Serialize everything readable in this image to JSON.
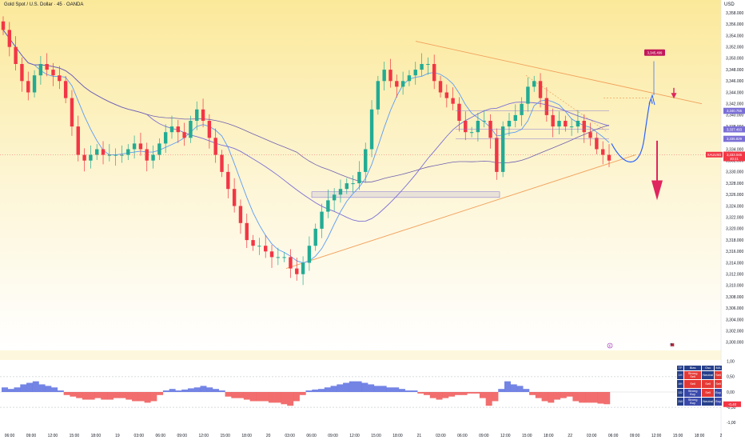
{
  "header": {
    "symbol_title": "Gold Spot / U.S. Dollar · 45 · OANDA",
    "currency": "USD"
  },
  "colors": {
    "up": "#22ab94",
    "down": "#f23645",
    "ma_fast": "#5b9cf6",
    "ma_slow": "#7b6fd6",
    "ma_mid": "#6f5fb0",
    "trend": "#f2a15c",
    "projection": "#2962ff",
    "target_label": "#c2185b",
    "price_label": "#f23645",
    "osc_pos": "#5b6ee1",
    "osc_neg": "#f05555",
    "bg_top": "#fbe99a",
    "bg_bottom": "#ffffff"
  },
  "chart_data": [
    {
      "type": "candlestick",
      "title": "Gold Spot / U.S. Dollar · 45 · OANDA",
      "y_axis": {
        "range": [
          3299,
          3359
        ],
        "ticks": [
          "3,358.000",
          "3,356.000",
          "3,354.000",
          "3,352.000",
          "3,350.000",
          "3,348.000",
          "3,346.000",
          "3,344.000",
          "3,342.000",
          "3,340.000",
          "3,338.000",
          "3,336.000",
          "3,334.000",
          "3,332.000",
          "3,330.000",
          "3,328.000",
          "3,326.000",
          "3,324.000",
          "3,322.000",
          "3,320.000",
          "3,318.000",
          "3,316.000",
          "3,314.000",
          "3,312.000",
          "3,310.000",
          "3,308.000",
          "3,306.000",
          "3,304.000",
          "3,302.000",
          "3,300.000"
        ]
      },
      "x_axis": {
        "labels": [
          "06:00",
          "09:00",
          "12:00",
          "15:00",
          "18:00",
          "19",
          "03:00",
          "06:00",
          "09:00",
          "12:00",
          "15:00",
          "18:00",
          "20",
          "03:00",
          "06:00",
          "09:00",
          "12:00",
          "15:00",
          "18:00",
          "21",
          "03:00",
          "06:00",
          "09:00",
          "12:00",
          "15:00",
          "18:00",
          "22",
          "03:00",
          "06:00",
          "09:00",
          "12:00",
          "15:00",
          "18:00",
          "2"
        ]
      },
      "path_close": [
        3355,
        3352,
        3349,
        3346,
        3344,
        3347,
        3349,
        3348,
        3347,
        3346,
        3343,
        3338,
        3333,
        3332,
        3333,
        3334,
        3333,
        3333,
        3333,
        3333,
        3334,
        3335,
        3334,
        3332,
        3333,
        3335,
        3337,
        3338,
        3337,
        3336,
        3339,
        3341,
        3339,
        3336,
        3333,
        3330,
        3327,
        3324,
        3321,
        3318,
        3317,
        3317,
        3316,
        3315,
        3315,
        3315,
        3313,
        3312,
        3314,
        3317,
        3320,
        3323,
        3325,
        3326,
        3327,
        3328,
        3328,
        3330,
        3334,
        3341,
        3346,
        3348,
        3346,
        3345,
        3346,
        3347,
        3348,
        3349,
        3349,
        3346,
        3344,
        3343,
        3342,
        3339,
        3337,
        3337,
        3339,
        3339,
        3336,
        3330,
        3338,
        3339,
        3340,
        3342,
        3345,
        3346,
        3343,
        3340,
        3338,
        3339,
        3338,
        3338,
        3339,
        3337,
        3336,
        3334,
        3333,
        3332
      ],
      "hlines": [
        {
          "value": 3340.755,
          "label": "3,340.755"
        },
        {
          "value": 3337.493,
          "label": "3,337.493"
        },
        {
          "value": 3335.829,
          "label": "3,335.829"
        }
      ],
      "last_price": {
        "symbol": "XAUUSD",
        "value": 3333.045,
        "label": "3,333.045",
        "countdown": "40:41"
      },
      "target": {
        "value": 3345.499,
        "label": "3,345.499"
      },
      "trendlines": {
        "upper": {
          "from": {
            "date": "21 02:00",
            "y": 3353
          },
          "to": {
            "date": "22 23:00",
            "y": 3342
          }
        },
        "lower": {
          "from": {
            "date": "20 00:00",
            "y": 3313
          },
          "to": {
            "date": "22 05:00",
            "y": 3333
          }
        }
      },
      "support_zone": [
        3325.5,
        3326.5
      ]
    },
    {
      "type": "bar",
      "subtitle": "oscillator",
      "y_axis": {
        "range": [
          -1.1,
          1.1
        ],
        "ticks": [
          "1,00",
          "0,50",
          "0,00",
          "-0,50",
          "-1,00"
        ]
      },
      "values": [
        0.15,
        0.1,
        0.15,
        0.25,
        0.3,
        0.35,
        0.25,
        0.2,
        0.15,
        0.05,
        -0.1,
        -0.15,
        -0.2,
        -0.25,
        -0.25,
        -0.2,
        -0.25,
        -0.25,
        -0.2,
        -0.2,
        -0.25,
        -0.3,
        -0.3,
        -0.35,
        -0.3,
        -0.1,
        0.05,
        0.1,
        0.05,
        0.08,
        0.12,
        0.15,
        0.2,
        0.15,
        0.1,
        0.05,
        -0.15,
        -0.2,
        -0.2,
        -0.25,
        -0.3,
        -0.3,
        -0.3,
        -0.35,
        -0.35,
        -0.4,
        -0.45,
        -0.3,
        -0.1,
        0.05,
        0.08,
        0.1,
        0.15,
        0.2,
        0.25,
        0.3,
        0.35,
        0.35,
        0.3,
        0.25,
        0.2,
        0.2,
        0.15,
        0.15,
        0.1,
        0.05,
        0.05,
        -0.05,
        -0.1,
        -0.2,
        -0.25,
        -0.2,
        -0.15,
        -0.1,
        -0.1,
        -0.05,
        -0.05,
        -0.2,
        -0.45,
        -0.3,
        0.1,
        0.35,
        0.25,
        0.2,
        0.1,
        -0.1,
        -0.2,
        -0.3,
        -0.35,
        -0.25,
        -0.2,
        -0.15,
        -0.3,
        -0.35,
        -0.35,
        -0.35,
        -0.38,
        -0.4
      ],
      "current": "-0,40"
    }
  ],
  "osc_table": {
    "headers": [
      "TF",
      "Bias",
      "Osc",
      "MA"
    ],
    "rows": [
      {
        "tf": "1H",
        "bias": "Strong Sell",
        "osc": "Neutral",
        "ma": "Sell",
        "colors": [
          "#26408b",
          "#e53935",
          "#26408b",
          "#e53935"
        ]
      },
      {
        "tf": "4H",
        "bias": "Sell",
        "osc": "Sell",
        "ma": "Sell",
        "colors": [
          "#26408b",
          "#e53935",
          "#e53935",
          "#e53935"
        ]
      },
      {
        "tf": "1D",
        "bias": "Strong Buy",
        "osc": "Sell",
        "ma": "Buy",
        "colors": [
          "#26408b",
          "#3949ab",
          "#e53935",
          "#3949ab"
        ]
      },
      {
        "tf": "1W",
        "bias": "Strong Buy",
        "osc": "Neutral",
        "ma": "Buy",
        "colors": [
          "#26408b",
          "#3949ab",
          "#26408b",
          "#3949ab"
        ]
      }
    ]
  },
  "icons": {
    "event_flag": "flag-icon",
    "event_marker": "lightning-icon"
  }
}
